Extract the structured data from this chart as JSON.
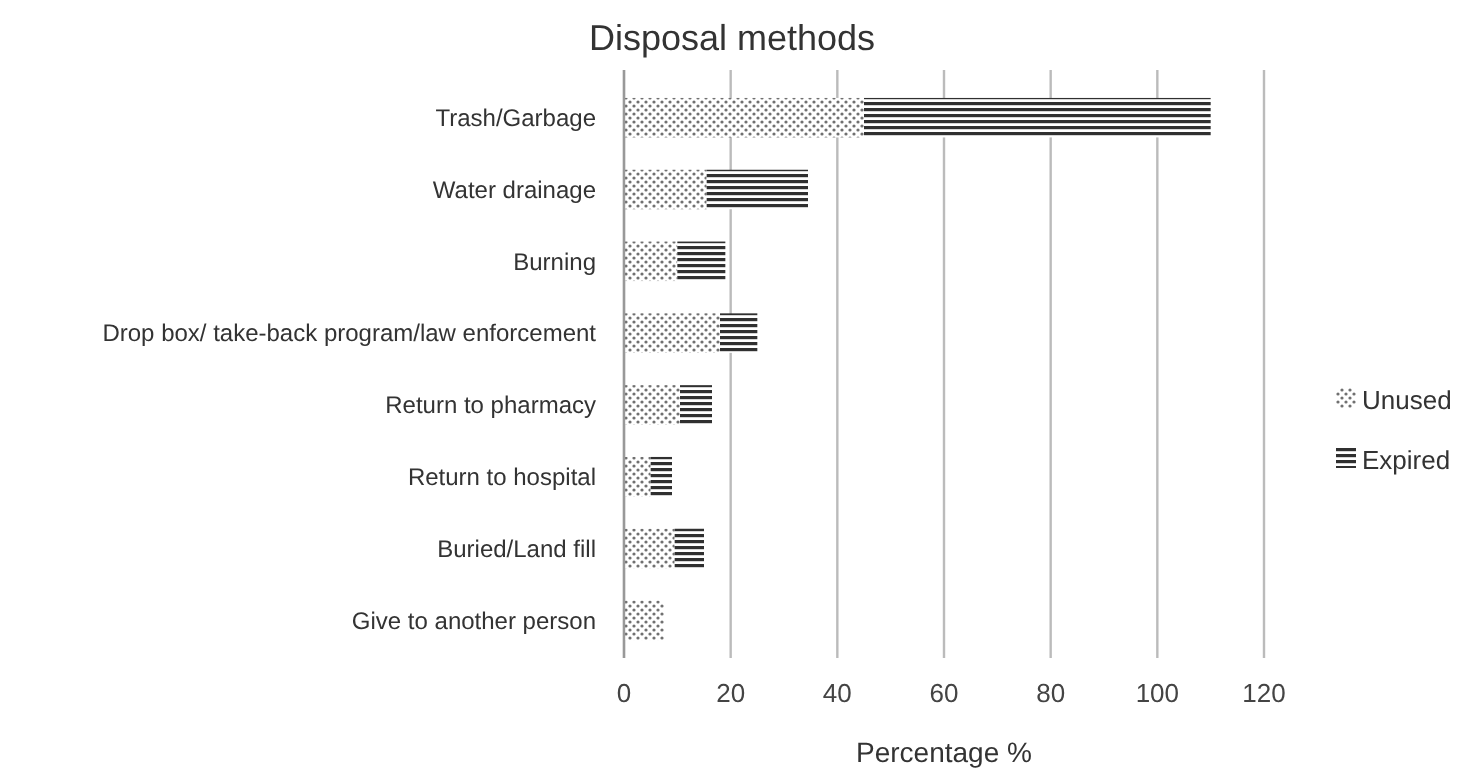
{
  "chart_data": {
    "type": "bar",
    "orientation": "horizontal",
    "stacked": true,
    "title": "Disposal methods",
    "xlabel": "Percentage %",
    "categories": [
      "Trash/Garbage",
      "Water drainage",
      "Burning",
      "Drop box/ take-back program/law enforcement",
      "Return to pharmacy",
      "Return to hospital",
      "Buried/Land fill",
      "Give to another person"
    ],
    "series": [
      {
        "name": "Unused",
        "color": "#707070",
        "values": [
          45,
          15.5,
          10,
          18,
          10.5,
          5,
          9.5,
          7.5
        ]
      },
      {
        "name": "Expired",
        "color": "#303030",
        "values": [
          65,
          19,
          9,
          7,
          6,
          4,
          5.5,
          0
        ]
      }
    ],
    "xlim": [
      0,
      120
    ],
    "xticks": [
      0,
      20,
      40,
      60,
      80,
      100,
      120
    ],
    "grid": "x",
    "legend": "right"
  }
}
